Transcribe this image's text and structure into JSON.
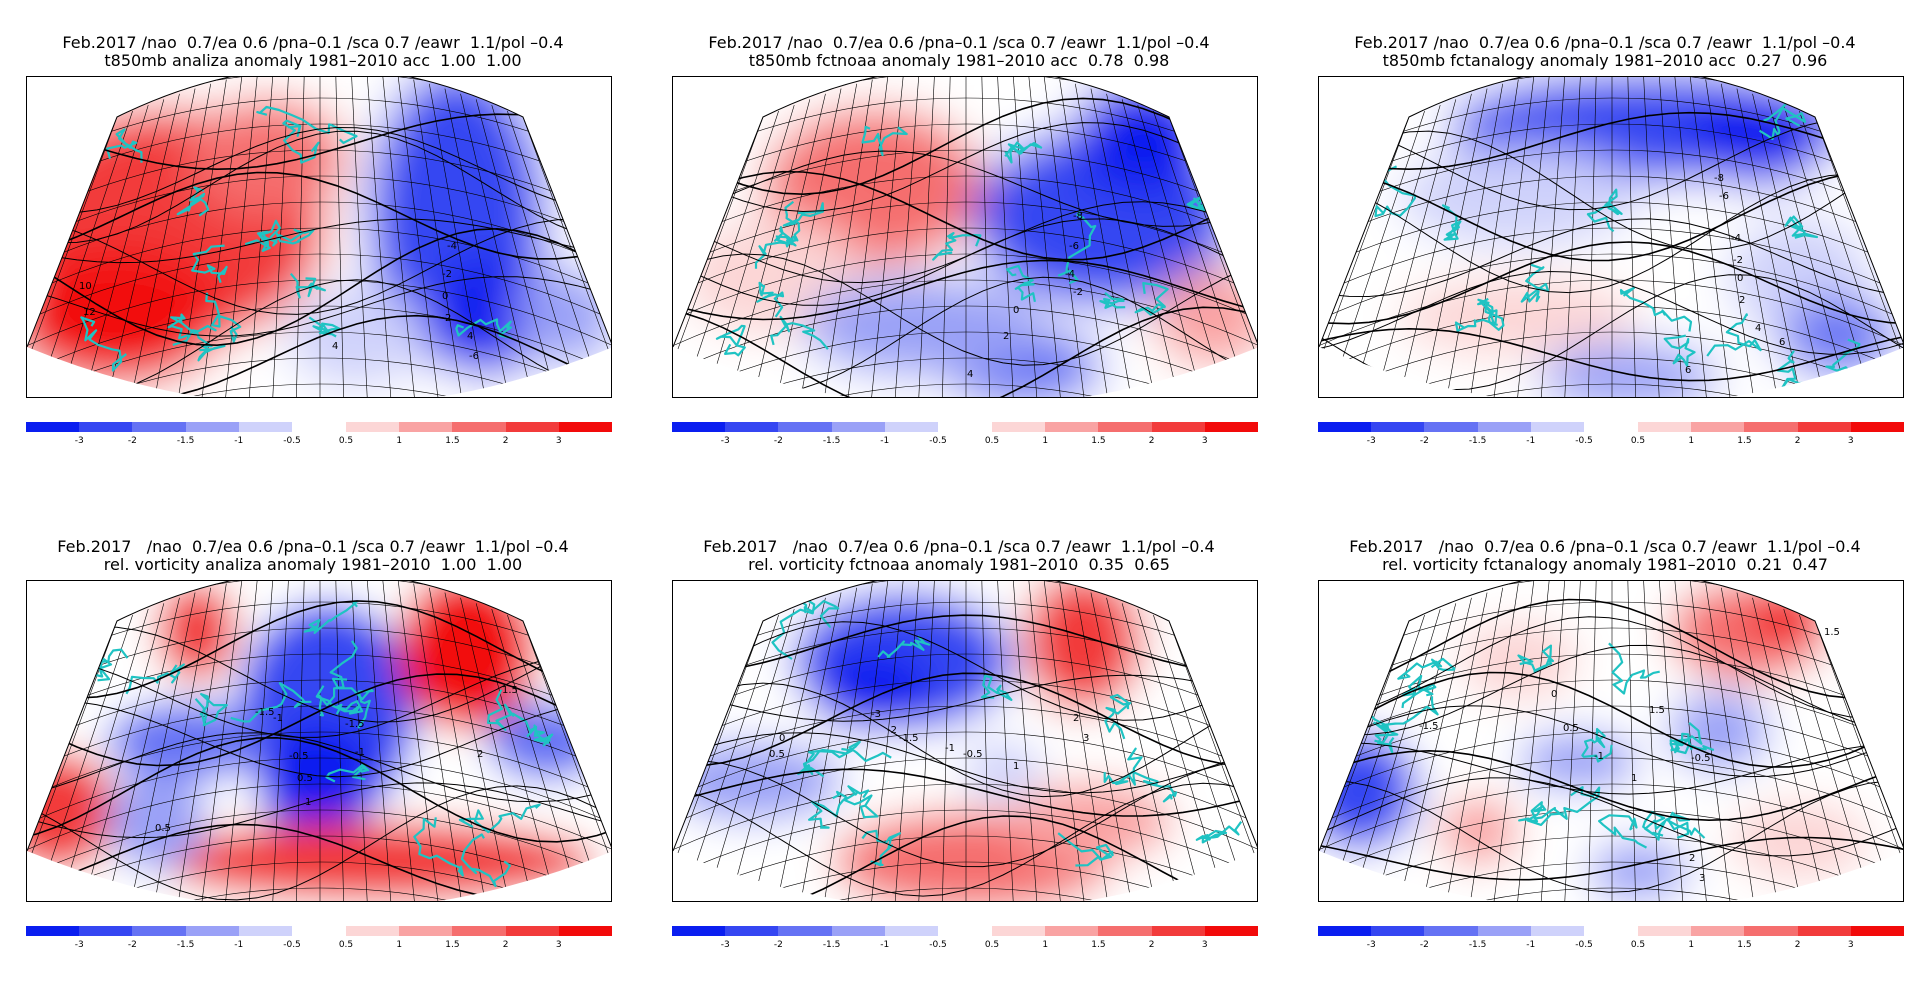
{
  "colors": {
    "neg": [
      "#0a1ef0",
      "#3546f2",
      "#6572f4",
      "#9aa1f7",
      "#cfd2fb"
    ],
    "pos": [
      "#fcd6d6",
      "#f9a3a3",
      "#f56e6e",
      "#f23b3b",
      "#f20a0a"
    ],
    "coast": "#1fc3c3",
    "contour": "#000000",
    "grid": "#000000"
  },
  "colorbar_ticks": {
    "neg": [
      "-3",
      "-2",
      "-1.5",
      "-1",
      "-0.5"
    ],
    "pos": [
      "0.5",
      "1",
      "1.5",
      "2",
      "3"
    ]
  },
  "panels": [
    {
      "title_line1": "Feb.2017 /nao  0.7/ea 0.6 /pna–0.1 /sca 0.7 /eawr  1.1/pol –0.4",
      "title_line2": "t850mb analiza anomaly 1981–2010 acc  1.00  1.00",
      "labels": [
        "-4",
        "-2",
        "0",
        "2",
        "4",
        "-6",
        "10",
        "12",
        "4"
      ]
    },
    {
      "title_line1": "Feb.2017 /nao  0.7/ea 0.6 /pna–0.1 /sca 0.7 /eawr  1.1/pol –0.4",
      "title_line2": "t850mb fctnoaa anomaly 1981–2010 acc  0.78  0.98",
      "labels": [
        "-8",
        "-6",
        "-4",
        "-2",
        "0",
        "2",
        "4"
      ]
    },
    {
      "title_line1": "Feb.2017 /nao  0.7/ea 0.6 /pna–0.1 /sca 0.7 /eawr  1.1/pol –0.4",
      "title_line2": "t850mb fctanalogy anomaly 1981–2010 acc  0.27  0.96",
      "labels": [
        "-8",
        "-6",
        "-4",
        "-2",
        "0",
        "2",
        "4",
        "6",
        "6"
      ]
    },
    {
      "title_line1": "Feb.2017   /nao  0.7/ea 0.6 /pna–0.1 /sca 0.7 /eawr  1.1/pol –0.4",
      "title_line2": "rel. vorticity analiza anomaly 1981–2010  1.00  1.00",
      "labels": [
        "-1.5",
        "-1",
        "-0.5",
        "-1.5",
        "-1",
        "0.5",
        "1",
        "1.5",
        "2",
        "0.5"
      ]
    },
    {
      "title_line1": "Feb.2017   /nao  0.7/ea 0.6 /pna–0.1 /sca 0.7 /eawr  1.1/pol –0.4",
      "title_line2": "rel. vorticity fctnoaa anomaly 1981–2010  0.35  0.65",
      "labels": [
        "-3",
        "-2",
        "-1.5",
        "-1",
        "-0.5",
        "0",
        "0.5",
        "1",
        "2",
        "3"
      ]
    },
    {
      "title_line1": "Feb.2017   /nao  0.7/ea 0.6 /pna–0.1 /sca 0.7 /eawr  1.1/pol –0.4",
      "title_line2": "rel. vorticity fctanalogy anomaly 1981–2010  0.21  0.47",
      "labels": [
        "-1",
        "-0.5",
        "0",
        "0.5",
        "1",
        "1.5",
        "-1.5",
        "1.5",
        "2",
        "3"
      ]
    }
  ]
}
